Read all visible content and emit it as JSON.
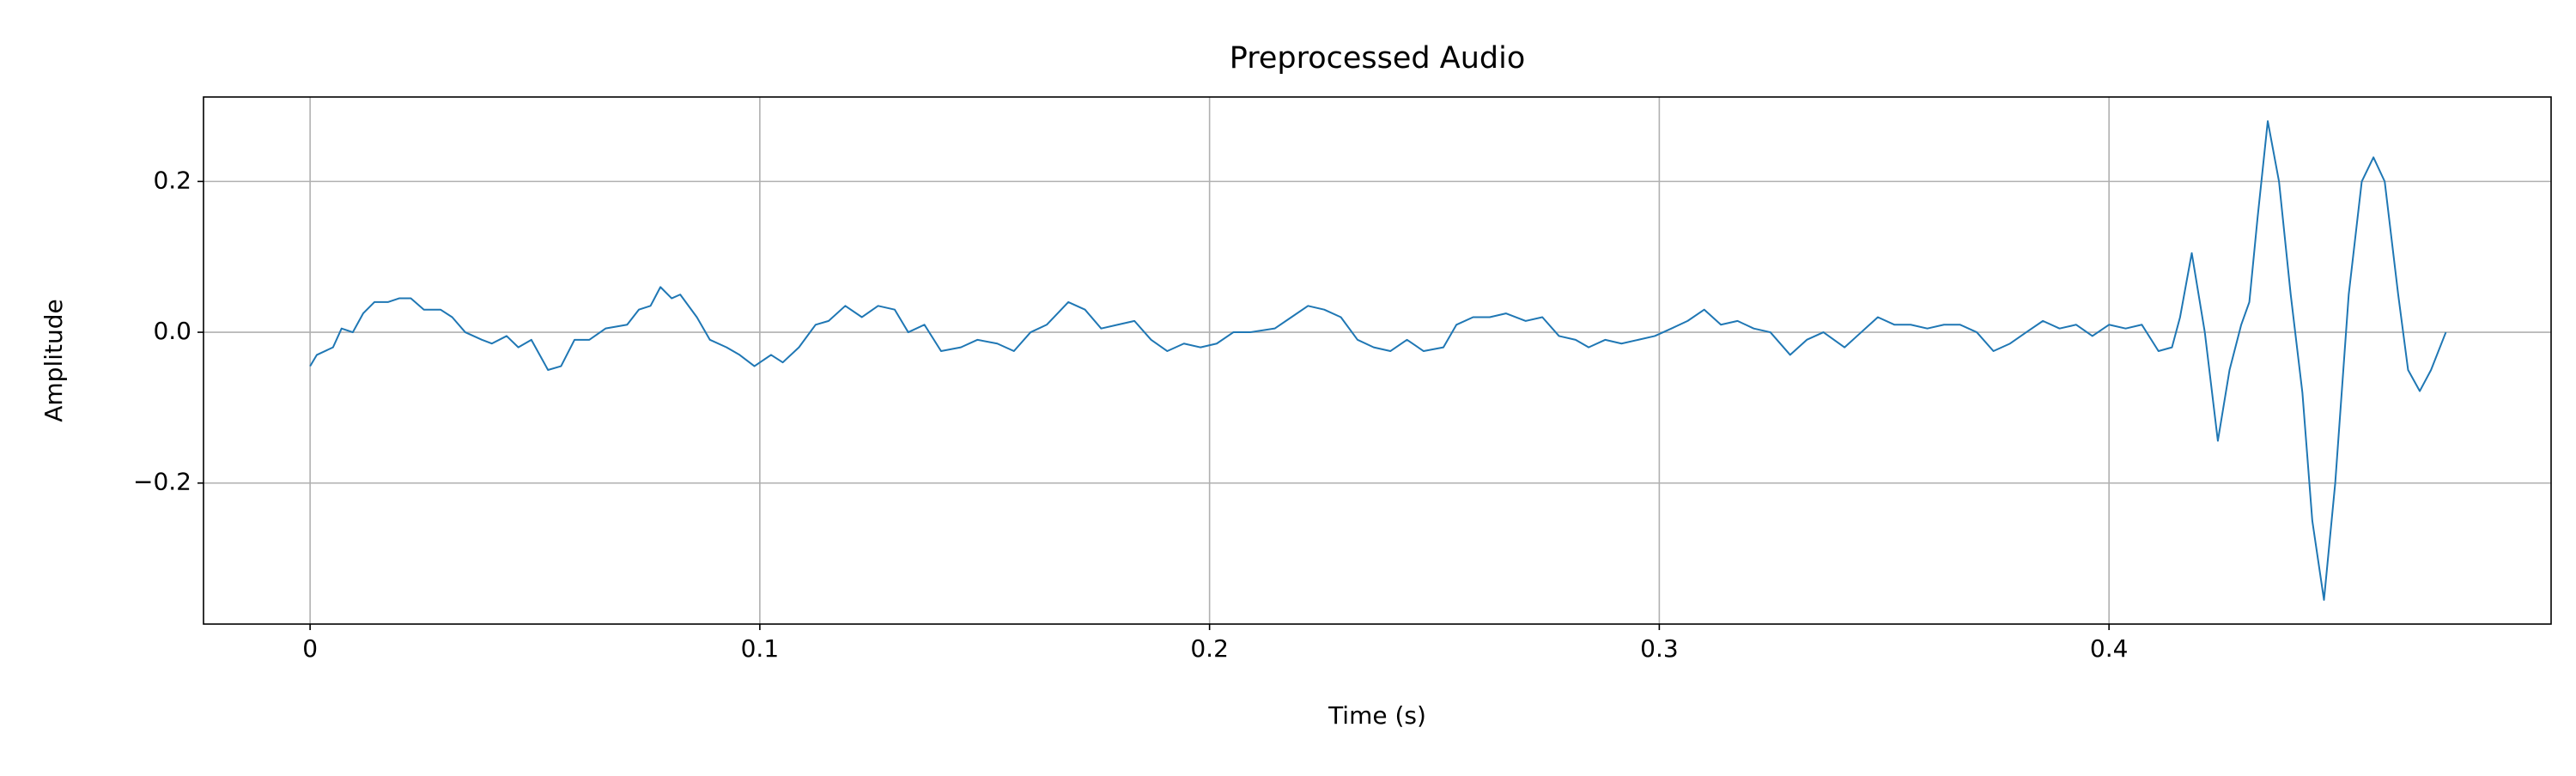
{
  "chart_data": {
    "type": "line",
    "title": "Preprocessed Audio",
    "x_label": "Time (s)",
    "y_label": "Amplitude",
    "xlim": [
      -0.0237,
      0.4983
    ],
    "xticks": [
      0.0,
      0.1,
      0.2,
      0.3,
      0.4
    ],
    "ylim": [
      -0.387,
      0.312
    ],
    "yticks": [
      {
        "value": -0.2,
        "label": "−0.2"
      },
      {
        "value": 0.0,
        "label": "0.0"
      },
      {
        "value": 0.2,
        "label": "0.2"
      }
    ],
    "grid": true,
    "x": [
      0.0,
      0.0015,
      0.0051,
      0.007,
      0.0095,
      0.0118,
      0.0143,
      0.0173,
      0.0198,
      0.0224,
      0.0253,
      0.029,
      0.0316,
      0.0345,
      0.0382,
      0.0404,
      0.0437,
      0.0463,
      0.0492,
      0.0529,
      0.0558,
      0.0588,
      0.0621,
      0.0657,
      0.0705,
      0.0731,
      0.0757,
      0.0779,
      0.0804,
      0.0823,
      0.086,
      0.0889,
      0.0926,
      0.0955,
      0.0988,
      0.1025,
      0.1051,
      0.1087,
      0.1124,
      0.1153,
      0.119,
      0.1227,
      0.1263,
      0.13,
      0.133,
      0.1366,
      0.1403,
      0.1447,
      0.1484,
      0.1528,
      0.1565,
      0.1602,
      0.1638,
      0.1686,
      0.1723,
      0.1759,
      0.1796,
      0.1833,
      0.187,
      0.1906,
      0.1943,
      0.198,
      0.2016,
      0.2053,
      0.209,
      0.2145,
      0.2182,
      0.2219,
      0.2255,
      0.2292,
      0.2329,
      0.2365,
      0.2402,
      0.2439,
      0.2476,
      0.252,
      0.2549,
      0.2586,
      0.2623,
      0.2659,
      0.2703,
      0.274,
      0.2777,
      0.2814,
      0.2843,
      0.288,
      0.2916,
      0.2953,
      0.299,
      0.3027,
      0.3063,
      0.31,
      0.3137,
      0.3174,
      0.321,
      0.3247,
      0.3291,
      0.3328,
      0.3365,
      0.3412,
      0.3449,
      0.3486,
      0.3523,
      0.3559,
      0.3596,
      0.3633,
      0.3669,
      0.3706,
      0.3743,
      0.378,
      0.3816,
      0.3853,
      0.389,
      0.3927,
      0.3963,
      0.4,
      0.4037,
      0.4073,
      0.411,
      0.414,
      0.4158,
      0.4184,
      0.4213,
      0.4242,
      0.4268,
      0.4294,
      0.4312,
      0.433,
      0.4353,
      0.4378,
      0.4404,
      0.443,
      0.4452,
      0.4478,
      0.4503,
      0.4533,
      0.4562,
      0.4588,
      0.4613,
      0.4643,
      0.4665,
      0.4691,
      0.4716,
      0.4749
    ],
    "series": [
      {
        "color": "#1f77b4",
        "values": [
          -0.045,
          -0.03,
          -0.02,
          0.005,
          0.0,
          0.025,
          0.04,
          0.04,
          0.045,
          0.045,
          0.03,
          0.03,
          0.02,
          0.0,
          -0.01,
          -0.015,
          -0.005,
          -0.02,
          -0.01,
          -0.05,
          -0.045,
          -0.01,
          -0.01,
          0.005,
          0.01,
          0.03,
          0.035,
          0.06,
          0.045,
          0.05,
          0.02,
          -0.01,
          -0.02,
          -0.03,
          -0.045,
          -0.03,
          -0.04,
          -0.02,
          0.01,
          0.015,
          0.035,
          0.02,
          0.035,
          0.03,
          0.0,
          0.01,
          -0.025,
          -0.02,
          -0.01,
          -0.015,
          -0.025,
          0.0,
          0.01,
          0.04,
          0.03,
          0.005,
          0.01,
          0.015,
          -0.01,
          -0.025,
          -0.015,
          -0.02,
          -0.015,
          0.0,
          0.0,
          0.005,
          0.02,
          0.035,
          0.03,
          0.02,
          -0.01,
          -0.02,
          -0.025,
          -0.01,
          -0.025,
          -0.02,
          0.01,
          0.02,
          0.02,
          0.025,
          0.015,
          0.02,
          -0.005,
          -0.01,
          -0.02,
          -0.01,
          -0.015,
          -0.01,
          -0.005,
          0.005,
          0.015,
          0.03,
          0.01,
          0.015,
          0.005,
          0.0,
          -0.03,
          -0.01,
          0.0,
          -0.02,
          0.0,
          0.02,
          0.01,
          0.01,
          0.005,
          0.01,
          0.01,
          0.0,
          -0.025,
          -0.015,
          0.0,
          0.015,
          0.005,
          0.01,
          -0.005,
          0.01,
          0.005,
          0.01,
          -0.025,
          -0.02,
          0.02,
          0.105,
          0.0,
          -0.144,
          -0.05,
          0.01,
          0.04,
          0.15,
          0.28,
          0.2,
          0.05,
          -0.08,
          -0.25,
          -0.355,
          -0.2,
          0.05,
          0.2,
          0.232,
          0.2,
          0.05,
          -0.05,
          -0.078,
          -0.05,
          0.0
        ]
      }
    ]
  }
}
